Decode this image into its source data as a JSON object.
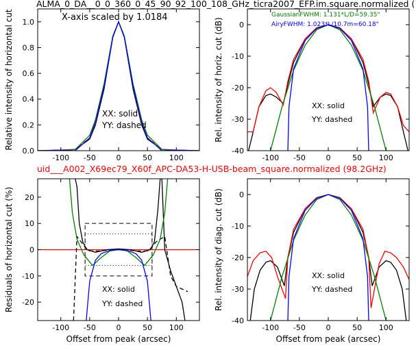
{
  "figure": {
    "title_top": "ALMA_0_DA__0_0_360_0_45_90_92_100_108_GHz_ticra2007_EFP.im.square.normalized (",
    "title_mid": "uid___A002_X69ec79_X60f_APC-DA53-H-USB-beam_square.normalized (98.2GHz)",
    "title_mid_color": "#ff0000",
    "scale_note": "X-axis scaled by 1.0184",
    "legend_gaussian": "GaussianFWHM: 1.131*L/D=59.35\"",
    "legend_airy": "AiryFWHM: 1.023*L/10.7m=60.18\"",
    "legend_gaussian_color": "#008000",
    "legend_airy_color": "#0000ff",
    "xx_label": "XX: solid",
    "yy_label": "YY: dashed"
  },
  "chart_data": [
    {
      "type": "line",
      "panel": "top-left",
      "ylabel": "Relative intensity of horizontal cut",
      "xlabel": "",
      "xlim": [
        -140,
        140
      ],
      "ylim": [
        0,
        1.1
      ],
      "xticks": [
        "-100",
        "-50",
        "0",
        "50",
        "100"
      ],
      "yticks": [
        "0.0",
        "0.2",
        "0.4",
        "0.6",
        "0.8",
        "1.0"
      ],
      "series": [
        {
          "color": "#000000",
          "style": "solid",
          "x": [
            -140,
            -100,
            -75,
            -50,
            -40,
            -25,
            -10,
            0,
            10,
            25,
            40,
            50,
            75,
            100,
            140
          ],
          "y": [
            0,
            0.005,
            0.01,
            0.09,
            0.2,
            0.48,
            0.88,
            1.0,
            0.88,
            0.48,
            0.2,
            0.09,
            0.01,
            0.005,
            0
          ]
        },
        {
          "color": "#ff0000",
          "style": "dashed",
          "x": [
            -140,
            -100,
            -75,
            -50,
            -40,
            -25,
            -10,
            0,
            10,
            25,
            40,
            50,
            75,
            100,
            140
          ],
          "y": [
            0,
            0.005,
            0.01,
            0.1,
            0.21,
            0.5,
            0.89,
            1.0,
            0.89,
            0.5,
            0.21,
            0.1,
            0.01,
            0.005,
            0
          ]
        },
        {
          "color": "#008000",
          "style": "solid",
          "x": [
            -140,
            -100,
            -75,
            -50,
            -40,
            -25,
            -10,
            0,
            10,
            25,
            40,
            50,
            75,
            100,
            140
          ],
          "y": [
            0,
            0.0,
            0.01,
            0.12,
            0.24,
            0.52,
            0.89,
            1.0,
            0.89,
            0.52,
            0.24,
            0.12,
            0.01,
            0.0,
            0
          ]
        },
        {
          "color": "#0000ff",
          "style": "solid",
          "x": [
            -140,
            -100,
            -75,
            -50,
            -40,
            -25,
            -10,
            0,
            10,
            25,
            40,
            50,
            75,
            100,
            140
          ],
          "y": [
            0,
            0.005,
            0.0,
            0.1,
            0.22,
            0.5,
            0.88,
            1.0,
            0.88,
            0.5,
            0.22,
            0.1,
            0.0,
            0.005,
            0
          ]
        }
      ]
    },
    {
      "type": "line",
      "panel": "top-right",
      "ylabel": "Rel. intensity of horiz. cut (dB)",
      "xlabel": "",
      "xlim": [
        -140,
        140
      ],
      "ylim": [
        -40,
        5
      ],
      "xticks": [
        "-100",
        "-50",
        "0",
        "50",
        "100"
      ],
      "yticks": [
        "0",
        "-10",
        "-20",
        "-30",
        "-40"
      ],
      "series": [
        {
          "color": "#000000",
          "style": "solid",
          "x": [
            -138,
            -130,
            -120,
            -108,
            -100,
            -90,
            -78,
            -70,
            -60,
            -40,
            -20,
            0,
            20,
            40,
            60,
            70,
            78,
            90,
            100,
            108,
            120,
            130,
            138
          ],
          "y": [
            -40,
            -34,
            -26,
            -22.5,
            -22,
            -23,
            -25,
            -19,
            -12,
            -4.5,
            -1,
            0,
            -1,
            -4.5,
            -12,
            -19,
            -26,
            -23,
            -22,
            -22.5,
            -26,
            -34,
            -40
          ]
        },
        {
          "color": "#ff0000",
          "style": "solid",
          "x": [
            -140,
            -130,
            -120,
            -108,
            -100,
            -90,
            -78,
            -70,
            -60,
            -40,
            -20,
            0,
            20,
            40,
            60,
            70,
            78,
            90,
            100,
            108,
            120,
            130,
            140
          ],
          "y": [
            -34,
            -34,
            -26,
            -21,
            -20,
            -21.5,
            -25.5,
            -18,
            -11,
            -4.5,
            -1,
            0,
            -1,
            -4.5,
            -11,
            -18,
            -28,
            -23,
            -21.5,
            -22,
            -26,
            -32,
            -34
          ]
        },
        {
          "color": "#008000",
          "style": "solid",
          "x": [
            -100,
            -80,
            -60,
            -40,
            -20,
            0,
            20,
            40,
            60,
            80,
            100
          ],
          "y": [
            -40,
            -26,
            -14.5,
            -6.5,
            -1.6,
            0,
            -1.6,
            -6.5,
            -14.5,
            -26,
            -40
          ]
        },
        {
          "color": "#0000ff",
          "style": "solid",
          "x": [
            -70,
            -68,
            -60,
            -40,
            -20,
            0,
            20,
            40,
            60,
            68,
            70
          ],
          "y": [
            -40,
            -26,
            -14,
            -5,
            -1.2,
            0,
            -1.2,
            -5,
            -14,
            -26,
            -40
          ]
        }
      ]
    },
    {
      "type": "line",
      "panel": "bottom-left",
      "ylabel": "Residuals of horizontal cut (%)",
      "xlabel": "Offset from peak (arcsec)",
      "xlim": [
        -140,
        140
      ],
      "ylim": [
        -27,
        27
      ],
      "xticks": [
        "-100",
        "-50",
        "0",
        "50",
        "100"
      ],
      "yticks": [
        "20",
        "10",
        "0",
        "-10",
        "-20"
      ],
      "hline": 0,
      "dashed_box": [
        -58,
        58,
        -10,
        10
      ],
      "dotted_box": [
        -58,
        58,
        -6,
        6
      ],
      "series": [
        {
          "color": "#ff0000",
          "style": "solid",
          "x": [
            -140,
            140
          ],
          "y": [
            0,
            0
          ]
        },
        {
          "color": "#000000",
          "style": "solid",
          "x": [
            -75,
            -72,
            -68,
            -62,
            -55,
            -40,
            -20,
            0,
            20,
            40,
            55,
            62,
            68,
            72,
            75,
            80,
            90,
            100,
            110,
            115
          ],
          "y": [
            27,
            24,
            10,
            3,
            0,
            -1,
            0,
            0.3,
            0,
            -1,
            0,
            3,
            15,
            27,
            27,
            0,
            -8,
            -14,
            -20,
            -27
          ]
        },
        {
          "color": "#000000",
          "style": "dashed",
          "x": [
            -78,
            -72,
            -65,
            -58,
            -50,
            -30,
            -10,
            0,
            10,
            30,
            50,
            58,
            65,
            72,
            80,
            90,
            100,
            110,
            120
          ],
          "y": [
            -27,
            5,
            3,
            1,
            -0.5,
            -0.5,
            0,
            0,
            0,
            -0.5,
            -0.5,
            1,
            3,
            4,
            5,
            -10,
            -14,
            -15,
            -16
          ]
        },
        {
          "color": "#008000",
          "style": "solid",
          "x": [
            -85,
            -80,
            -72,
            -60,
            -45,
            -30,
            -15,
            0,
            15,
            30,
            45,
            60,
            72,
            80,
            85
          ],
          "y": [
            27,
            14,
            4,
            -2,
            -6,
            -3,
            -0.5,
            0,
            -0.5,
            -3,
            -6,
            -2,
            4,
            14,
            27
          ]
        },
        {
          "color": "#0000ff",
          "style": "solid",
          "x": [
            -56,
            -50,
            -40,
            -30,
            -15,
            0,
            15,
            30,
            40,
            50,
            56
          ],
          "y": [
            -27,
            -12,
            -4,
            -1.5,
            -0.3,
            0,
            -0.3,
            -1.5,
            -4,
            -12,
            -27
          ]
        }
      ]
    },
    {
      "type": "line",
      "panel": "bottom-right",
      "ylabel": "Rel. intensity of diag. cut (dB)",
      "xlabel": "Offset from peak (arcsec)",
      "xlim": [
        -140,
        140
      ],
      "ylim": [
        -40,
        5
      ],
      "xticks": [
        "-100",
        "-50",
        "0",
        "50",
        "100"
      ],
      "yticks": [
        "0",
        "-10",
        "-20",
        "-30",
        "-40"
      ],
      "series": [
        {
          "color": "#000000",
          "style": "solid",
          "x": [
            -135,
            -128,
            -118,
            -108,
            -100,
            -88,
            -76,
            -70,
            -60,
            -40,
            -20,
            0,
            20,
            40,
            60,
            70,
            76,
            88,
            100,
            108,
            118,
            128,
            135
          ],
          "y": [
            -40,
            -30,
            -24,
            -21.5,
            -21,
            -23,
            -29,
            -20,
            -12,
            -4.5,
            -1,
            0,
            -1,
            -4.5,
            -12,
            -20,
            -29,
            -23,
            -21,
            -21.5,
            -24,
            -30,
            -40
          ]
        },
        {
          "color": "#ff0000",
          "style": "solid",
          "x": [
            -140,
            -130,
            -118,
            -108,
            -98,
            -88,
            -74,
            -70,
            -60,
            -40,
            -20,
            0,
            20,
            40,
            60,
            70,
            74,
            88,
            98,
            108,
            118,
            130,
            140
          ],
          "y": [
            -26,
            -21,
            -18.5,
            -18,
            -20,
            -26,
            -33,
            -20,
            -11,
            -4.5,
            -1,
            0,
            -1,
            -4.5,
            -11,
            -20,
            -36,
            -22,
            -18,
            -18.5,
            -20,
            -23,
            -27
          ]
        },
        {
          "color": "#008000",
          "style": "solid",
          "x": [
            -100,
            -80,
            -60,
            -40,
            -20,
            0,
            20,
            40,
            60,
            80,
            100
          ],
          "y": [
            -40,
            -26,
            -14.5,
            -6.5,
            -1.6,
            0,
            -1.6,
            -6.5,
            -14.5,
            -26,
            -40
          ]
        },
        {
          "color": "#0000ff",
          "style": "solid",
          "x": [
            -70,
            -68,
            -60,
            -40,
            -20,
            0,
            20,
            40,
            60,
            68,
            70
          ],
          "y": [
            -40,
            -26,
            -14,
            -5,
            -1.2,
            0,
            -1.2,
            -5,
            -14,
            -26,
            -40
          ]
        }
      ]
    }
  ]
}
